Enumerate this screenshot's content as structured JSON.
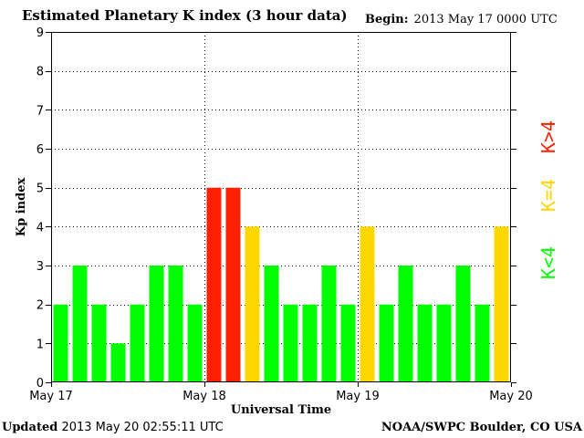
{
  "header": {
    "title": "Estimated Planetary K index (3 hour data)",
    "begin_label": "Begin:",
    "begin_value": "2013 May 17 0000 UTC"
  },
  "footer": {
    "updated_label": "Updated",
    "updated_value": "2013 May 20 02:55:11 UTC",
    "source": "NOAA/SWPC Boulder, CO USA"
  },
  "chart_data": {
    "type": "bar",
    "title": "Estimated Planetary K index (3 hour data)",
    "xlabel": "Universal Time",
    "ylabel": "Kp index",
    "ylim": [
      0,
      9
    ],
    "yticks": [
      0,
      1,
      2,
      3,
      4,
      5,
      6,
      7,
      8,
      9
    ],
    "x_ticks": [
      "May 17",
      "May 18",
      "May 19",
      "May 20"
    ],
    "x_tick_bar_index": [
      0,
      8,
      16,
      24
    ],
    "grid": true,
    "bars_per_day": 8,
    "values": [
      2,
      3,
      2,
      1,
      2,
      3,
      3,
      2,
      5,
      5,
      4,
      3,
      2,
      2,
      3,
      2,
      4,
      2,
      3,
      2,
      2,
      3,
      2,
      4
    ],
    "colors": {
      "low": "#00ff00",
      "equal": "#ffd700",
      "high": "#ff2000"
    },
    "legend": {
      "placement": "right",
      "items": [
        {
          "label": "K>4",
          "color": "#ff2000"
        },
        {
          "label": "K=4",
          "color": "#ffd700"
        },
        {
          "label": "K<4",
          "color": "#00ff00"
        }
      ]
    }
  }
}
